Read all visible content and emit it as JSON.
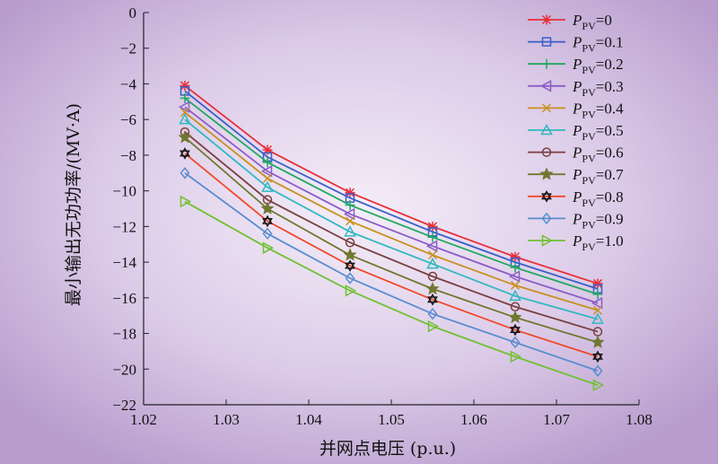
{
  "chart_data": {
    "type": "line",
    "title": "",
    "xlabel": "并网点电压 (p.u.)",
    "ylabel": "最小输出无功功率/(MV·A)",
    "xlim": [
      1.02,
      1.08
    ],
    "ylim": [
      -22,
      0
    ],
    "x_ticks": [
      "1.02",
      "1.03",
      "1.04",
      "1.05",
      "1.06",
      "1.07",
      "1.08"
    ],
    "y_ticks": [
      "0",
      "−2",
      "−4",
      "−6",
      "−8",
      "−10",
      "−12",
      "−14",
      "−16",
      "−18",
      "−20",
      "−22"
    ],
    "grid": false,
    "legend_position": "top-right",
    "legend_symbol": "P",
    "legend_subscript": "PV",
    "x": [
      1.025,
      1.035,
      1.045,
      1.055,
      1.065,
      1.075
    ],
    "series": [
      {
        "name": "=0",
        "color": "#e8303a",
        "marker": "asterisk",
        "values": [
          -4.1,
          -7.7,
          -10.1,
          -12.0,
          -13.7,
          -15.2
        ]
      },
      {
        "name": "=0.1",
        "color": "#3a5fc8",
        "marker": "square",
        "values": [
          -4.4,
          -8.1,
          -10.4,
          -12.3,
          -14.0,
          -15.5
        ]
      },
      {
        "name": "=0.2",
        "color": "#20a860",
        "marker": "plus",
        "values": [
          -4.8,
          -8.4,
          -10.8,
          -12.6,
          -14.3,
          -15.8
        ]
      },
      {
        "name": "=0.3",
        "color": "#8a5cc8",
        "marker": "tri-left",
        "values": [
          -5.3,
          -8.9,
          -11.3,
          -13.1,
          -14.8,
          -16.3
        ]
      },
      {
        "name": "=0.4",
        "color": "#c89020",
        "marker": "x",
        "values": [
          -5.6,
          -9.3,
          -11.7,
          -13.6,
          -15.3,
          -16.7
        ]
      },
      {
        "name": "=0.5",
        "color": "#30b8c0",
        "marker": "tri-up",
        "values": [
          -6.0,
          -9.8,
          -12.3,
          -14.1,
          -15.9,
          -17.2
        ]
      },
      {
        "name": "=0.6",
        "color": "#7a4040",
        "marker": "circle",
        "values": [
          -6.7,
          -10.5,
          -12.9,
          -14.8,
          -16.5,
          -17.9
        ]
      },
      {
        "name": "=0.7",
        "color": "#707830",
        "marker": "star",
        "values": [
          -7.0,
          -11.0,
          -13.6,
          -15.5,
          -17.1,
          -18.5
        ]
      },
      {
        "name": "=0.8",
        "color": "#f04828",
        "marker": "hexstar",
        "values": [
          -7.9,
          -11.7,
          -14.2,
          -16.1,
          -17.8,
          -19.3
        ]
      },
      {
        "name": "=0.9",
        "color": "#5a8cd0",
        "marker": "diamond",
        "values": [
          -9.0,
          -12.4,
          -14.9,
          -16.9,
          -18.5,
          -20.1
        ]
      },
      {
        "name": "=1.0",
        "color": "#70c030",
        "marker": "tri-right",
        "values": [
          -10.6,
          -13.2,
          -15.6,
          -17.6,
          -19.3,
          -20.9
        ]
      }
    ]
  }
}
